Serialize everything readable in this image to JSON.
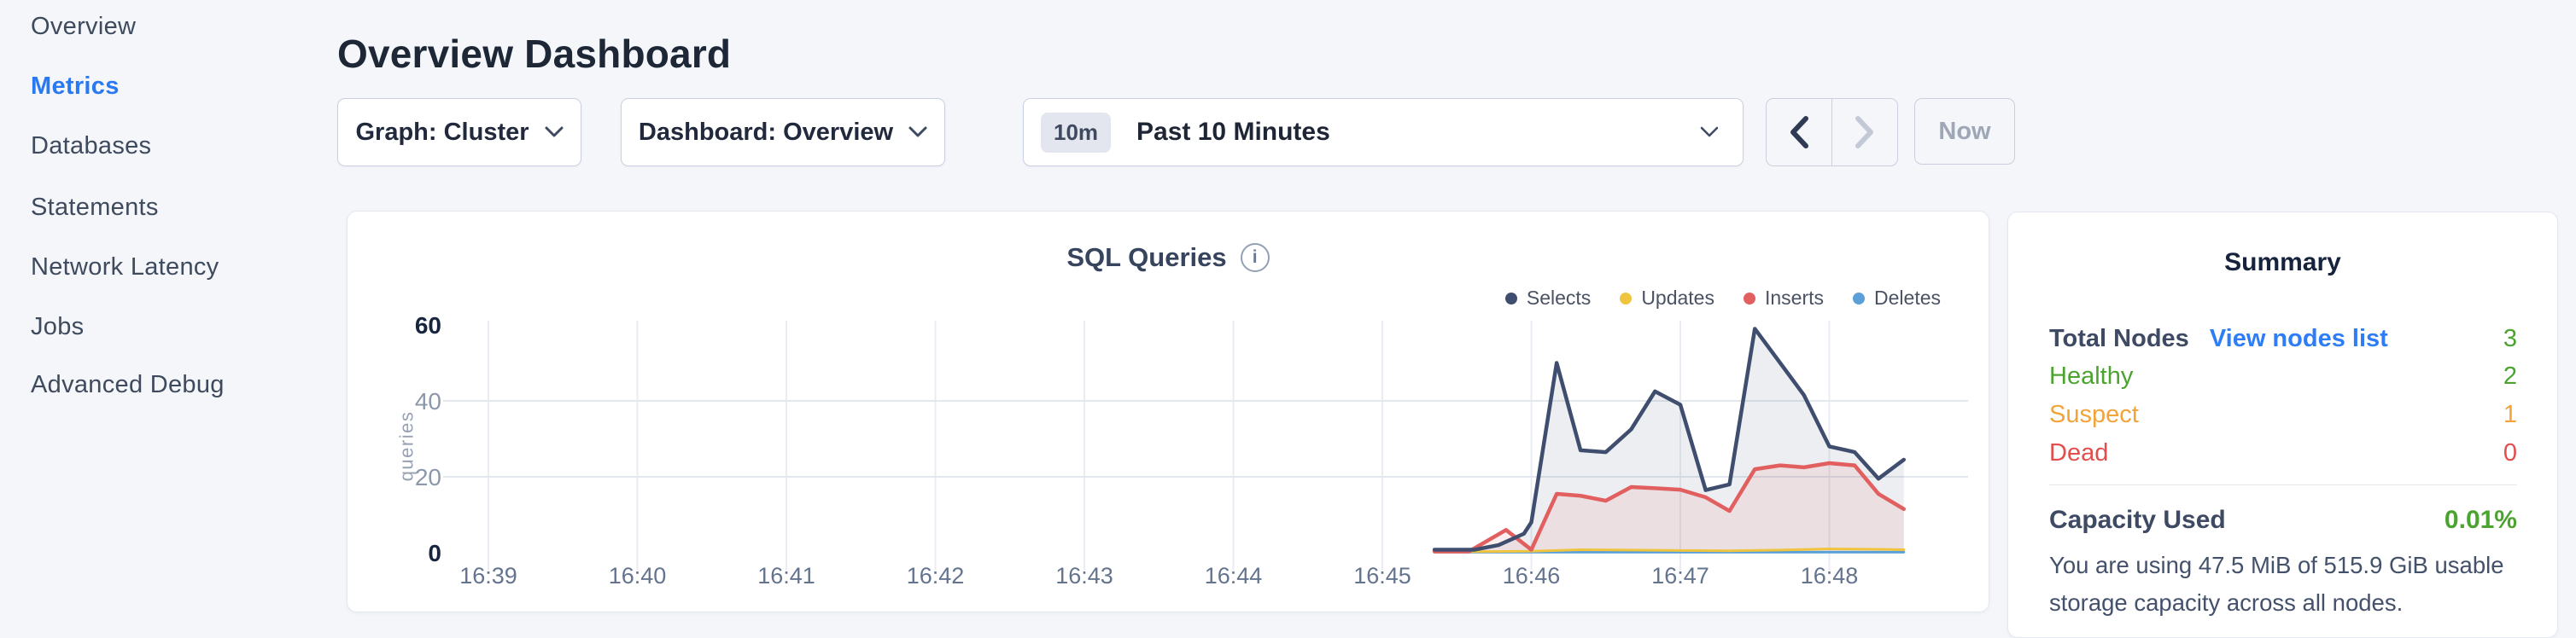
{
  "sidebar": {
    "items": [
      {
        "label": "Overview",
        "active": false
      },
      {
        "label": "Metrics",
        "active": true
      },
      {
        "label": "Databases",
        "active": false
      },
      {
        "label": "Statements",
        "active": false
      },
      {
        "label": "Network Latency",
        "active": false
      },
      {
        "label": "Jobs",
        "active": false
      },
      {
        "label": "Advanced Debug",
        "active": false
      }
    ]
  },
  "header": {
    "title": "Overview Dashboard"
  },
  "controls": {
    "graph_dropdown": "Graph: Cluster",
    "dashboard_dropdown": "Dashboard: Overview",
    "time_window_badge": "10m",
    "time_window_label": "Past 10 Minutes",
    "now_button": "Now"
  },
  "chart_data": {
    "type": "area",
    "title": "SQL Queries",
    "ylabel": "queries",
    "ylim": [
      0,
      60
    ],
    "yticks": [
      0,
      20,
      40,
      60
    ],
    "ytick_emphasis": [
      0,
      60
    ],
    "grid": "on",
    "legend_position": "top-right",
    "x_unit": "minutes after 16:39",
    "xtick_minutes": [
      0,
      1,
      2,
      3,
      4,
      5,
      6,
      7,
      8,
      9
    ],
    "xtick_labels": [
      "16:39",
      "16:40",
      "16:41",
      "16:42",
      "16:43",
      "16:44",
      "16:45",
      "16:46",
      "16:47",
      "16:48"
    ],
    "series": [
      {
        "name": "Selects",
        "color": "#3f4e6e",
        "fill": "rgba(71,88,114,0.10)",
        "width": 4.5,
        "x": [
          6.35,
          6.62,
          6.78,
          6.95,
          7.0,
          7.17,
          7.33,
          7.5,
          7.67,
          7.83,
          8.0,
          8.17,
          8.33,
          8.5,
          8.67,
          8.83,
          9.0,
          9.17,
          9.33,
          9.5
        ],
        "y": [
          0.8,
          0.8,
          2,
          5,
          8,
          50,
          27,
          26.5,
          32.5,
          42.5,
          39,
          16.5,
          18,
          59,
          50,
          41.5,
          28,
          26.5,
          19.5,
          24.5
        ]
      },
      {
        "name": "Updates",
        "color": "#efc53f",
        "fill": "none",
        "width": 3,
        "x": [
          6.35,
          7.0,
          7.33,
          7.67,
          8.0,
          8.33,
          8.67,
          9.0,
          9.33,
          9.5
        ],
        "y": [
          0.2,
          0.4,
          0.8,
          0.7,
          0.6,
          0.5,
          0.7,
          1.0,
          0.9,
          0.8
        ]
      },
      {
        "name": "Inserts",
        "color": "#e25f5f",
        "fill": "rgba(226,95,95,0.10)",
        "width": 4.5,
        "x": [
          6.35,
          6.58,
          6.83,
          7.0,
          7.17,
          7.33,
          7.5,
          7.67,
          7.83,
          8.0,
          8.17,
          8.33,
          8.5,
          8.67,
          8.83,
          9.0,
          9.17,
          9.33,
          9.5
        ],
        "y": [
          0.3,
          0.3,
          6,
          0.8,
          15.5,
          15,
          13.7,
          17.3,
          17,
          16.6,
          14.6,
          11,
          22,
          23,
          22.5,
          23.6,
          23,
          15.5,
          11.5
        ]
      },
      {
        "name": "Deletes",
        "color": "#5ba0d8",
        "fill": "none",
        "width": 3,
        "x": [
          6.35,
          9.5
        ],
        "y": [
          0.15,
          0.15
        ]
      }
    ]
  },
  "summary": {
    "title": "Summary",
    "rows": [
      {
        "label": "Total Nodes",
        "label_color": "#3e4a63",
        "link": "View nodes list",
        "value": "3",
        "value_color": "#4ca430"
      },
      {
        "label": "Healthy",
        "label_color": "#4ca430",
        "link": "",
        "value": "2",
        "value_color": "#4ca430"
      },
      {
        "label": "Suspect",
        "label_color": "#f2a43b",
        "link": "",
        "value": "1",
        "value_color": "#f2a43b"
      },
      {
        "label": "Dead",
        "label_color": "#e34d4d",
        "link": "",
        "value": "0",
        "value_color": "#e34d4d"
      }
    ],
    "capacity": {
      "label": "Capacity Used",
      "value": "0.01%",
      "value_color": "#4ca430",
      "description": "You are using 47.5 MiB of 515.9 GiB usable storage capacity across all nodes."
    }
  }
}
